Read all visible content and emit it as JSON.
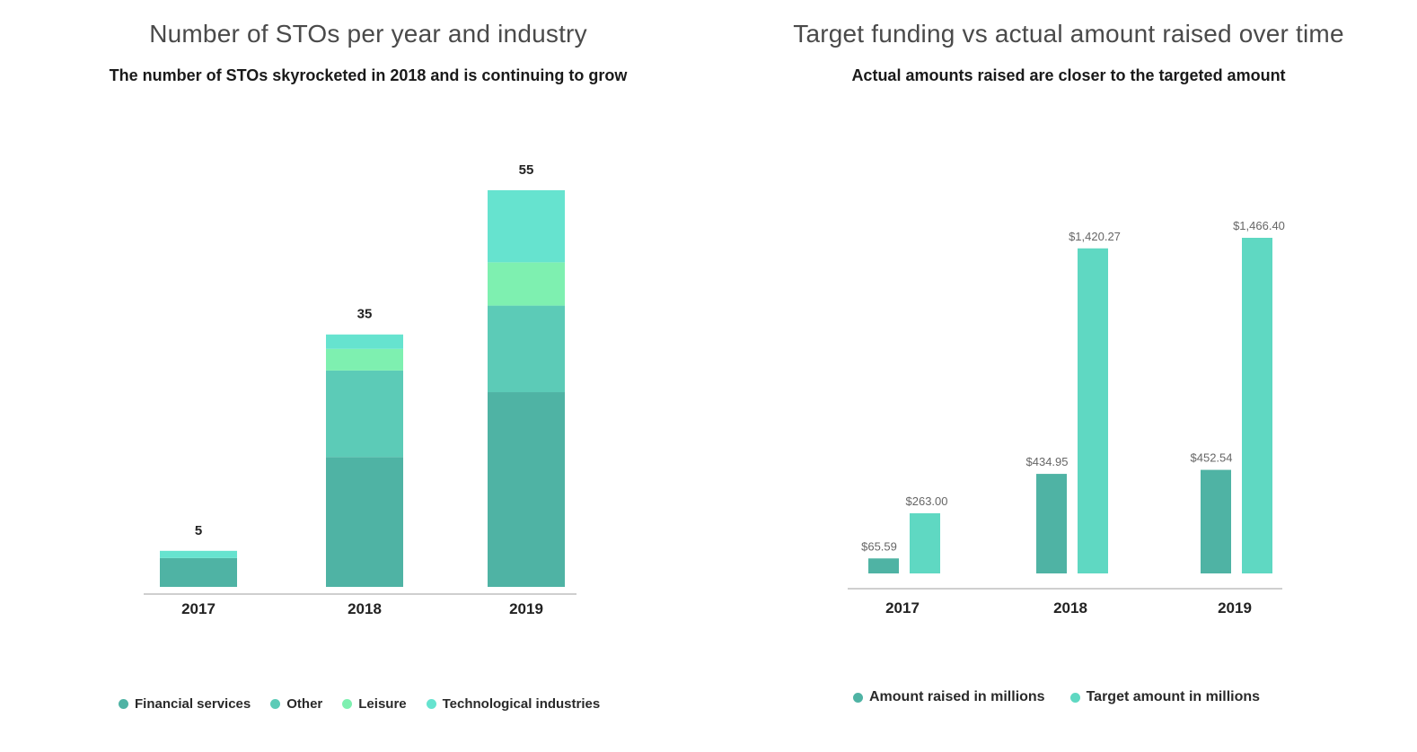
{
  "chart_data": [
    {
      "type": "bar",
      "stacked": true,
      "title": "Number of STOs per year and industry",
      "subtitle": "The number of STOs skyrocketed in 2018 and is continuing to grow",
      "categories": [
        "2017",
        "2018",
        "2019"
      ],
      "totals": [
        5,
        35,
        55
      ],
      "ylim": [
        0,
        55
      ],
      "series": [
        {
          "name": "Financial services",
          "values": [
            4,
            18,
            27
          ],
          "color": "#4fb3a4"
        },
        {
          "name": "Other",
          "values": [
            0,
            12,
            12
          ],
          "color": "#5ccbb7"
        },
        {
          "name": "Leisure",
          "values": [
            0,
            3,
            6
          ],
          "color": "#7ef0b0"
        },
        {
          "name": "Technological industries",
          "values": [
            1,
            2,
            10
          ],
          "color": "#66e3cf"
        }
      ],
      "legend": "bottom"
    },
    {
      "type": "bar",
      "title": "Target funding vs actual amount raised over time",
      "subtitle": "Actual amounts raised are closer to the targeted amount",
      "categories": [
        "2017",
        "2018",
        "2019"
      ],
      "ylim": [
        0,
        1466.4
      ],
      "series": [
        {
          "name": "Amount raised in millions",
          "values": [
            65.59,
            434.95,
            452.54
          ],
          "labels": [
            "$65.59",
            "$434.95",
            "$452.54"
          ],
          "color": "#4fb3a4"
        },
        {
          "name": "Target amount in millions",
          "values": [
            263.0,
            1420.27,
            1466.4
          ],
          "labels": [
            "$263.00",
            "$1,420.27",
            "$1,466.40"
          ],
          "color": "#5fd8c2"
        }
      ],
      "legend": "bottom"
    }
  ]
}
